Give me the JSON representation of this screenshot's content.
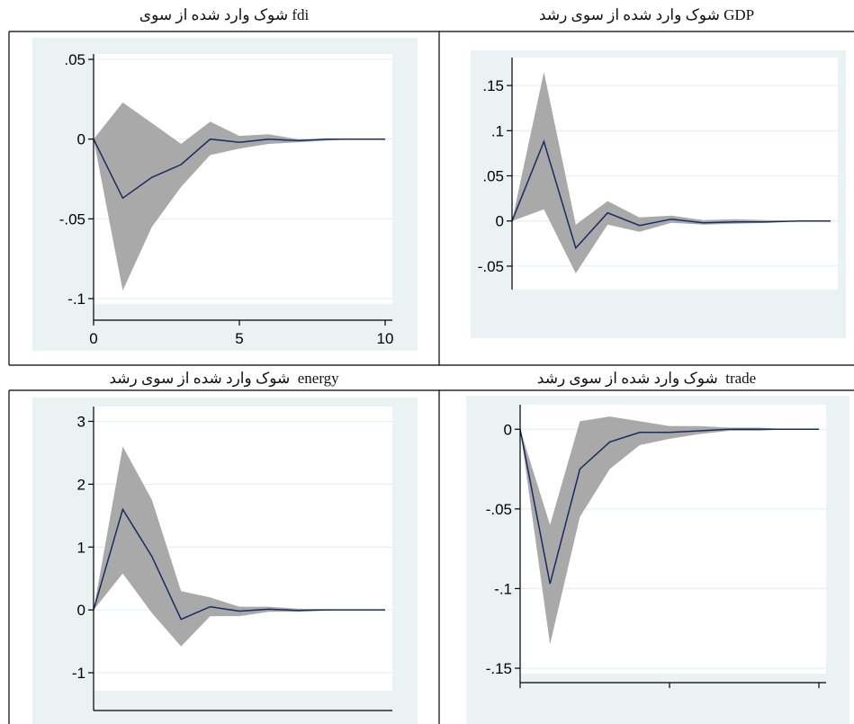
{
  "captions": {
    "fdi": {
      "arabic": "شوک وارد شده از سوی",
      "latin": "fdi"
    },
    "gdp": {
      "arabic": "شوک وارد شده از سوی رشد",
      "latin": "GDP"
    },
    "energy": {
      "arabic": "شوک وارد شده از سوی رشد",
      "latin": "energy"
    },
    "trade": {
      "arabic": "شوک وارد شده از سوی رشد",
      "latin": "trade"
    }
  },
  "chart_data": [
    {
      "id": "fdi",
      "type": "area",
      "x": [
        0,
        1,
        2,
        3,
        4,
        5,
        6,
        7,
        8,
        9,
        10
      ],
      "series": [
        {
          "role": "irf",
          "color": "#1a2a5e",
          "values": [
            0,
            -0.037,
            -0.024,
            -0.016,
            0,
            -0.002,
            0,
            -0.001,
            0,
            0,
            0
          ]
        },
        {
          "role": "band_upper",
          "color": "#a9a9a9",
          "values": [
            0,
            0.023,
            0.01,
            -0.003,
            0.011,
            0.002,
            0.003,
            0,
            0,
            0,
            0
          ]
        },
        {
          "role": "band_lower",
          "color": "#a9a9a9",
          "values": [
            0,
            -0.095,
            -0.055,
            -0.03,
            -0.01,
            -0.006,
            -0.003,
            -0.002,
            -0.001,
            0,
            0
          ]
        }
      ],
      "yticks": [
        ".05",
        "0",
        "-.05",
        "-.1"
      ],
      "ytick_values": [
        0.05,
        0,
        -0.05,
        -0.1
      ],
      "xticks": [
        "0",
        "5",
        "10"
      ],
      "xtick_values": [
        0,
        5,
        10
      ],
      "xlim": [
        0,
        10
      ],
      "ylim": [
        -0.1,
        0.05
      ],
      "grid": true
    },
    {
      "id": "gdp",
      "type": "area",
      "x": [
        0,
        1,
        2,
        3,
        4,
        5,
        6,
        7,
        8,
        9,
        10
      ],
      "series": [
        {
          "role": "irf",
          "color": "#1a2a5e",
          "values": [
            0,
            0.088,
            -0.03,
            0.009,
            -0.005,
            0.002,
            -0.002,
            -0.001,
            -0.001,
            0,
            0
          ]
        },
        {
          "role": "band_upper",
          "color": "#a9a9a9",
          "values": [
            0,
            0.165,
            -0.004,
            0.022,
            0.004,
            0.006,
            0.001,
            0.002,
            0.001,
            0,
            0
          ]
        },
        {
          "role": "band_lower",
          "color": "#a9a9a9",
          "values": [
            0,
            0.013,
            -0.058,
            -0.004,
            -0.012,
            -0.002,
            -0.004,
            -0.003,
            -0.002,
            0,
            0
          ]
        }
      ],
      "yticks": [
        ".15",
        ".1",
        ".05",
        "0",
        "-.05"
      ],
      "ytick_values": [
        0.15,
        0.1,
        0.05,
        0,
        -0.05
      ],
      "xlim": [
        0,
        10
      ],
      "ylim": [
        -0.07,
        0.175
      ],
      "grid": true
    },
    {
      "id": "energy",
      "type": "area",
      "x": [
        0,
        1,
        2,
        3,
        4,
        5,
        6,
        7,
        8,
        9,
        10
      ],
      "series": [
        {
          "role": "irf",
          "color": "#1a2a5e",
          "values": [
            0,
            1.6,
            0.85,
            -0.15,
            0.05,
            -0.02,
            0.01,
            -0.01,
            0,
            0,
            0
          ]
        },
        {
          "role": "band_upper",
          "color": "#a9a9a9",
          "values": [
            0,
            2.6,
            1.75,
            0.3,
            0.2,
            0.05,
            0.05,
            0.02,
            0.01,
            0,
            0
          ]
        },
        {
          "role": "band_lower",
          "color": "#a9a9a9",
          "values": [
            0,
            0.58,
            -0.05,
            -0.58,
            -0.1,
            -0.1,
            -0.03,
            -0.03,
            -0.01,
            0,
            0
          ]
        }
      ],
      "yticks": [
        "3",
        "2",
        "1",
        "0",
        "-1"
      ],
      "ytick_values": [
        3,
        2,
        1,
        0,
        -1
      ],
      "xlim": [
        0,
        10
      ],
      "ylim": [
        -1.2,
        3.15
      ],
      "grid": true
    },
    {
      "id": "trade",
      "type": "area",
      "x": [
        0,
        1,
        2,
        3,
        4,
        5,
        6,
        7,
        8,
        9,
        10
      ],
      "series": [
        {
          "role": "irf",
          "color": "#1a2a5e",
          "values": [
            0,
            -0.097,
            -0.025,
            -0.008,
            -0.002,
            -0.002,
            -0.001,
            0,
            0,
            0,
            0
          ]
        },
        {
          "role": "band_upper",
          "color": "#a9a9a9",
          "values": [
            0,
            -0.06,
            0.005,
            0.008,
            0.005,
            0.002,
            0.002,
            0.001,
            0.001,
            0,
            0
          ]
        },
        {
          "role": "band_lower",
          "color": "#a9a9a9",
          "values": [
            0,
            -0.135,
            -0.055,
            -0.025,
            -0.01,
            -0.006,
            -0.003,
            -0.001,
            -0.001,
            0,
            0
          ]
        }
      ],
      "yticks": [
        "0",
        "-.05",
        "-.1",
        "-.15"
      ],
      "ytick_values": [
        0,
        -0.05,
        -0.1,
        -0.15
      ],
      "xtick_values": [
        0,
        5,
        10
      ],
      "xlim": [
        0,
        10
      ],
      "ylim": [
        -0.15,
        0.012
      ],
      "grid": true
    }
  ]
}
